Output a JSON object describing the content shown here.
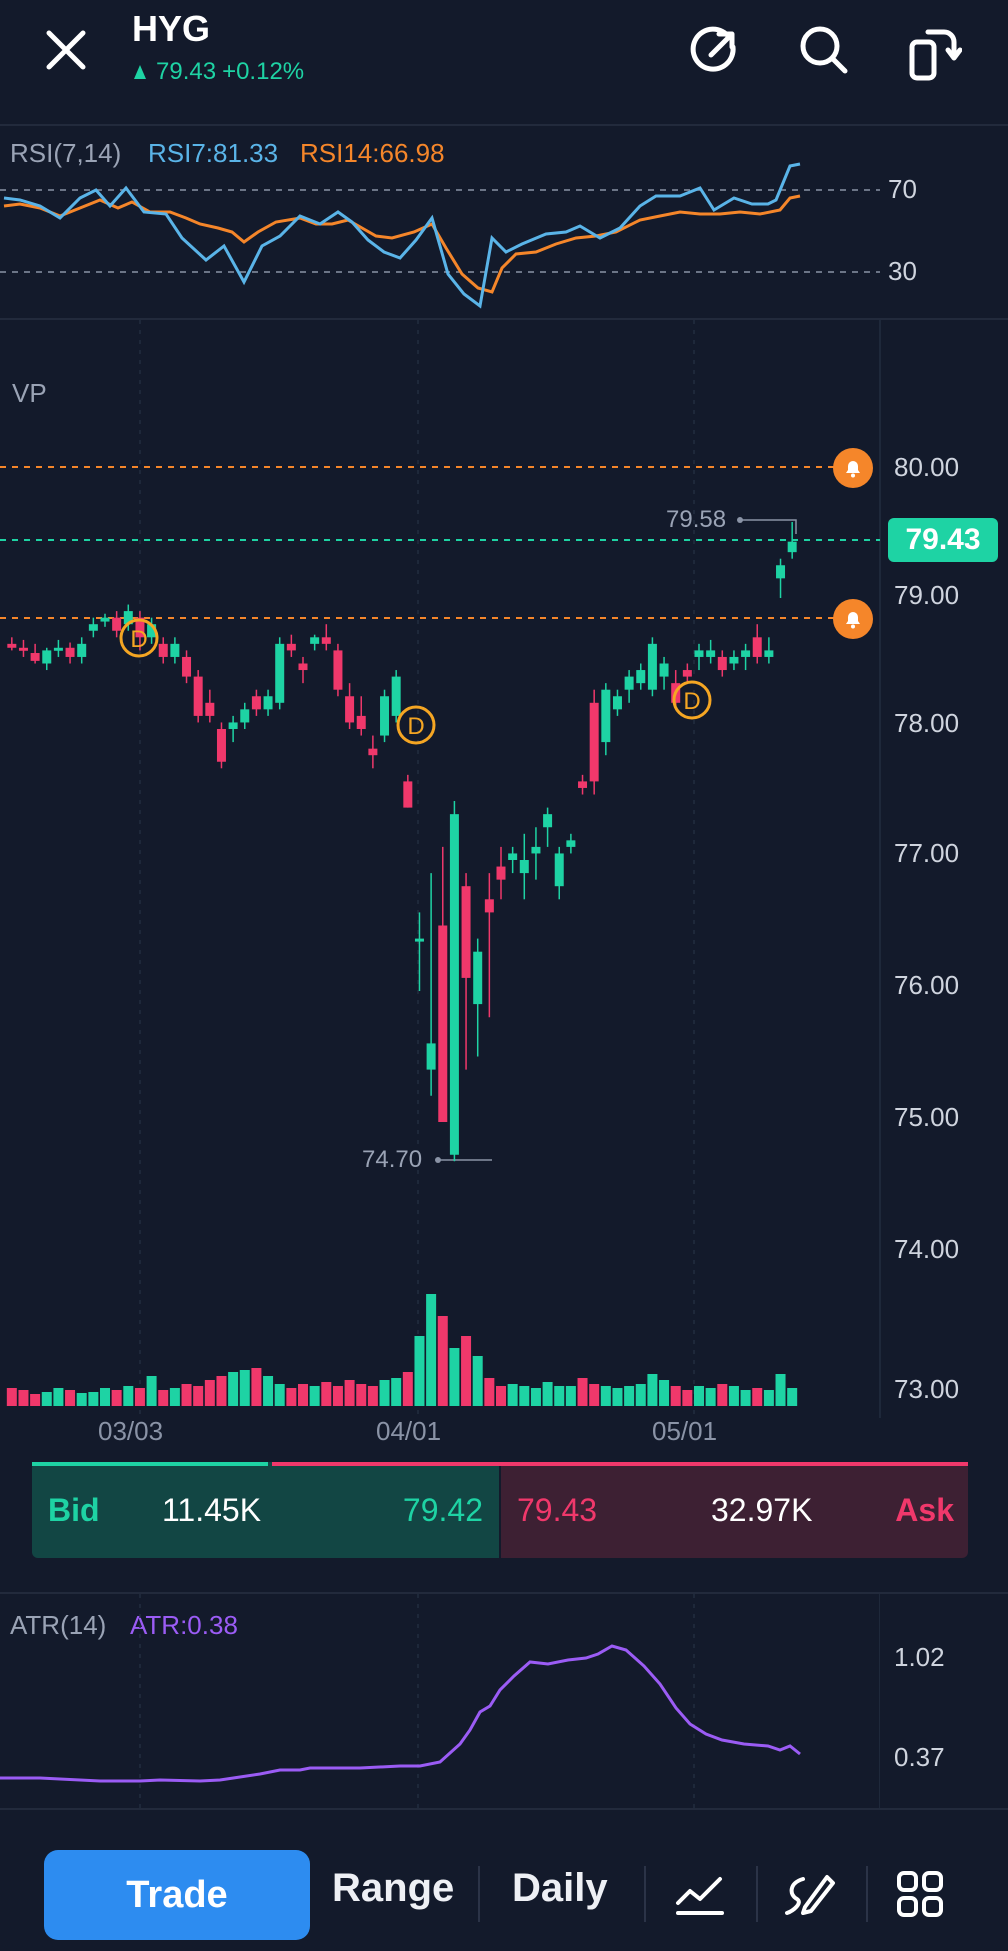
{
  "header": {
    "ticker": "HYG",
    "price": "79.43",
    "change": "+0.12%",
    "icons": [
      "close-icon",
      "share-icon",
      "search-icon",
      "rotate-icon"
    ]
  },
  "rsi": {
    "label": "RSI(7,14)",
    "rsi7_label": "RSI7:81.33",
    "rsi14_label": "RSI14:66.98",
    "levels": [
      "70",
      "30"
    ],
    "rsi7_color": "#5ab4e8",
    "rsi14_color": "#f5862a"
  },
  "main": {
    "vp_label": "VP",
    "price_axis": [
      "80.00",
      "79.00",
      "78.00",
      "77.00",
      "76.00",
      "75.00",
      "74.00",
      "73.00"
    ],
    "current_price": "79.43",
    "high_marker": "79.58",
    "low_marker": "74.70",
    "x_axis": [
      "03/03",
      "04/01",
      "05/01"
    ],
    "alert_levels": [
      "80.00",
      "78.85"
    ],
    "dividend_marker": "D",
    "up_color": "#1ed3a4",
    "down_color": "#f0386b"
  },
  "bidask": {
    "bid_label": "Bid",
    "bid_size": "11.45K",
    "bid_price": "79.42",
    "ask_price": "79.43",
    "ask_size": "32.97K",
    "ask_label": "Ask"
  },
  "atr": {
    "label": "ATR(14)",
    "value_label": "ATR:0.38",
    "axis": [
      "1.02",
      "0.37"
    ],
    "color": "#9b5cf5"
  },
  "bottom": {
    "trade": "Trade",
    "range": "Range",
    "period": "Daily",
    "icons": [
      "indicator-icon",
      "draw-icon",
      "grid-icon"
    ]
  }
}
